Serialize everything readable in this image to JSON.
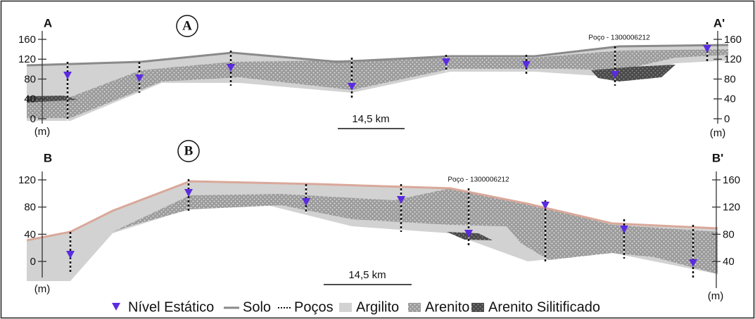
{
  "section_a": {
    "label_left": "A",
    "label_right": "A'",
    "badge": "A",
    "left_ticks": [
      160,
      120,
      80,
      40,
      0
    ],
    "right_ticks": [
      160,
      120,
      80,
      40,
      0
    ],
    "unit_left": "(m)",
    "unit_right": "(m)",
    "scale": "14,5 km",
    "well_label": "Poço - 1300006212"
  },
  "section_b": {
    "label_left": "B",
    "label_right": "B'",
    "badge": "B",
    "left_ticks": [
      120,
      80,
      40,
      0
    ],
    "right_ticks": [
      160,
      120,
      80,
      40
    ],
    "unit_left": "(m)",
    "unit_right": "(m)",
    "scale": "14,5 km",
    "well_label": "Poço - 1300006212"
  },
  "legend": [
    "Nível Estático",
    "Solo",
    "Poços",
    "Argilito",
    "Arenito",
    "Arenito Silitificado"
  ]
}
